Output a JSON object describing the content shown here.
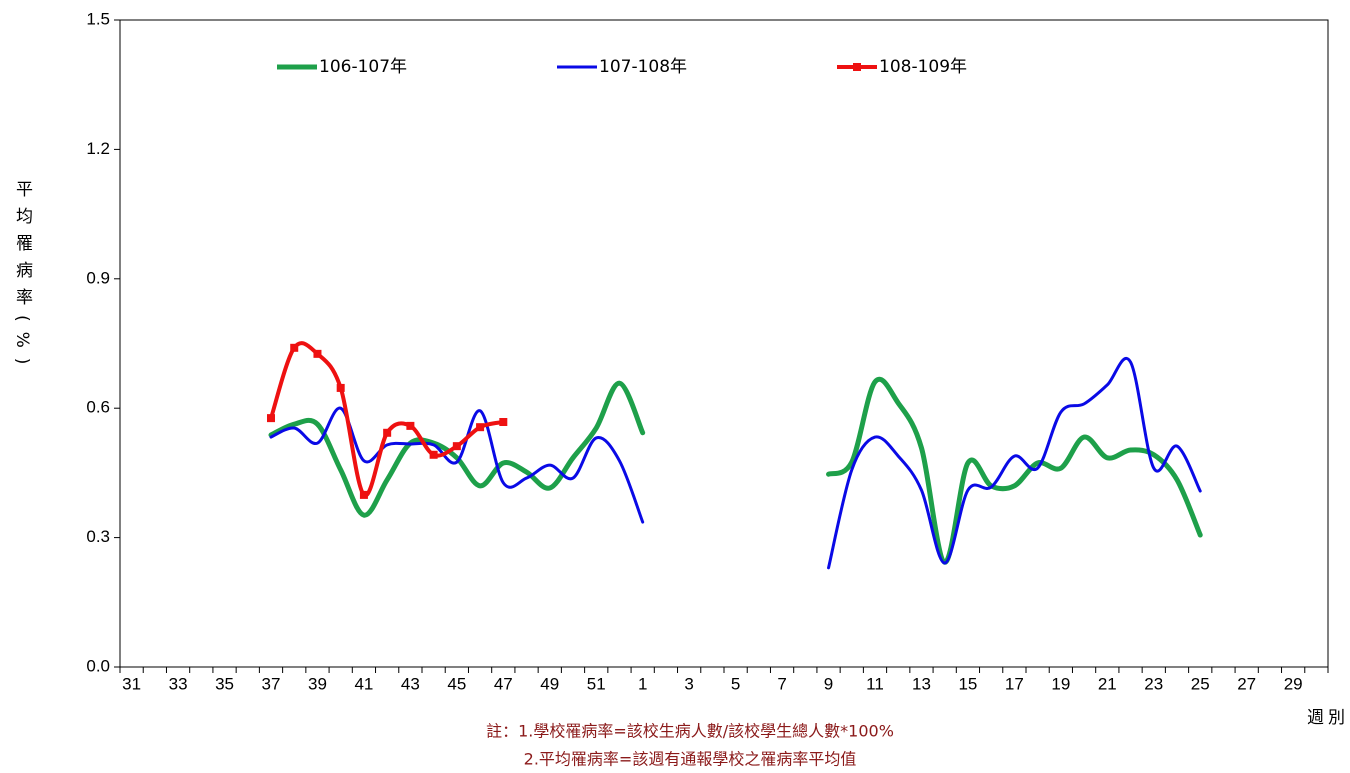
{
  "chart_data": {
    "type": "line",
    "y_label": "平均罹病率(%)",
    "x_label": "週別",
    "notes": [
      "註：1.學校罹病率=該校生病人數/該校學生總人數*100%",
      "2.平均罹病率=該週有通報學校之罹病率平均值"
    ],
    "categories": [
      "31",
      null,
      "33",
      null,
      "35",
      null,
      "37",
      null,
      "39",
      null,
      "41",
      null,
      "43",
      null,
      "45",
      null,
      "47",
      null,
      "49",
      null,
      "51",
      null,
      "1",
      null,
      "3",
      null,
      "5",
      null,
      "7",
      null,
      "9",
      null,
      "11",
      null,
      "13",
      null,
      "15",
      null,
      "17",
      null,
      "19",
      null,
      "21",
      null,
      "23",
      null,
      "25",
      null,
      "27",
      null,
      "29",
      null
    ],
    "ylim": [
      0,
      1.5
    ],
    "yticks": [
      {
        "value": 0,
        "label": "0.0"
      },
      0.3,
      0.6,
      0.9,
      1.2,
      1.5
    ],
    "legend": "top",
    "series": [
      {
        "name": "106-107年",
        "color": "#1ea04a",
        "width": 5,
        "values": [
          null,
          null,
          null,
          null,
          null,
          null,
          0.538,
          0.563,
          0.563,
          0.457,
          0.352,
          0.434,
          0.519,
          0.519,
          0.485,
          0.42,
          0.473,
          0.452,
          0.415,
          0.485,
          0.554,
          0.658,
          0.543,
          null,
          null,
          null,
          null,
          null,
          null,
          null,
          0.447,
          0.475,
          0.661,
          0.612,
          0.508,
          0.243,
          0.473,
          0.42,
          0.42,
          0.473,
          0.461,
          0.533,
          0.485,
          0.503,
          0.492,
          0.434,
          0.306,
          null,
          null,
          null,
          null,
          null
        ]
      },
      {
        "name": "107-108年",
        "color": "#0a0ae6",
        "width": 3,
        "values": [
          null,
          null,
          null,
          null,
          null,
          null,
          0.533,
          0.554,
          0.519,
          0.6,
          0.478,
          0.515,
          0.517,
          0.515,
          0.475,
          0.594,
          0.427,
          0.438,
          0.468,
          0.438,
          0.531,
          0.478,
          0.336,
          null,
          null,
          null,
          null,
          null,
          null,
          null,
          0.23,
          0.457,
          0.533,
          0.489,
          0.41,
          0.241,
          0.41,
          0.417,
          0.489,
          0.461,
          0.591,
          0.61,
          0.654,
          0.707,
          0.461,
          0.512,
          0.408,
          null,
          null,
          null,
          null,
          null
        ]
      },
      {
        "name": "108-109年",
        "color": "#ee1111",
        "width": 4,
        "marker": "square",
        "values": [
          null,
          null,
          null,
          null,
          null,
          null,
          0.577,
          0.74,
          0.726,
          0.647,
          0.399,
          0.543,
          0.559,
          0.492,
          0.512,
          0.556,
          0.568,
          null,
          null,
          null,
          null,
          null,
          null,
          null,
          null,
          null,
          null,
          null,
          null,
          null,
          null,
          null,
          null,
          null,
          null,
          null,
          null,
          null,
          null,
          null,
          null,
          null,
          null,
          null,
          null,
          null,
          null,
          null,
          null,
          null,
          null,
          null
        ]
      }
    ]
  }
}
